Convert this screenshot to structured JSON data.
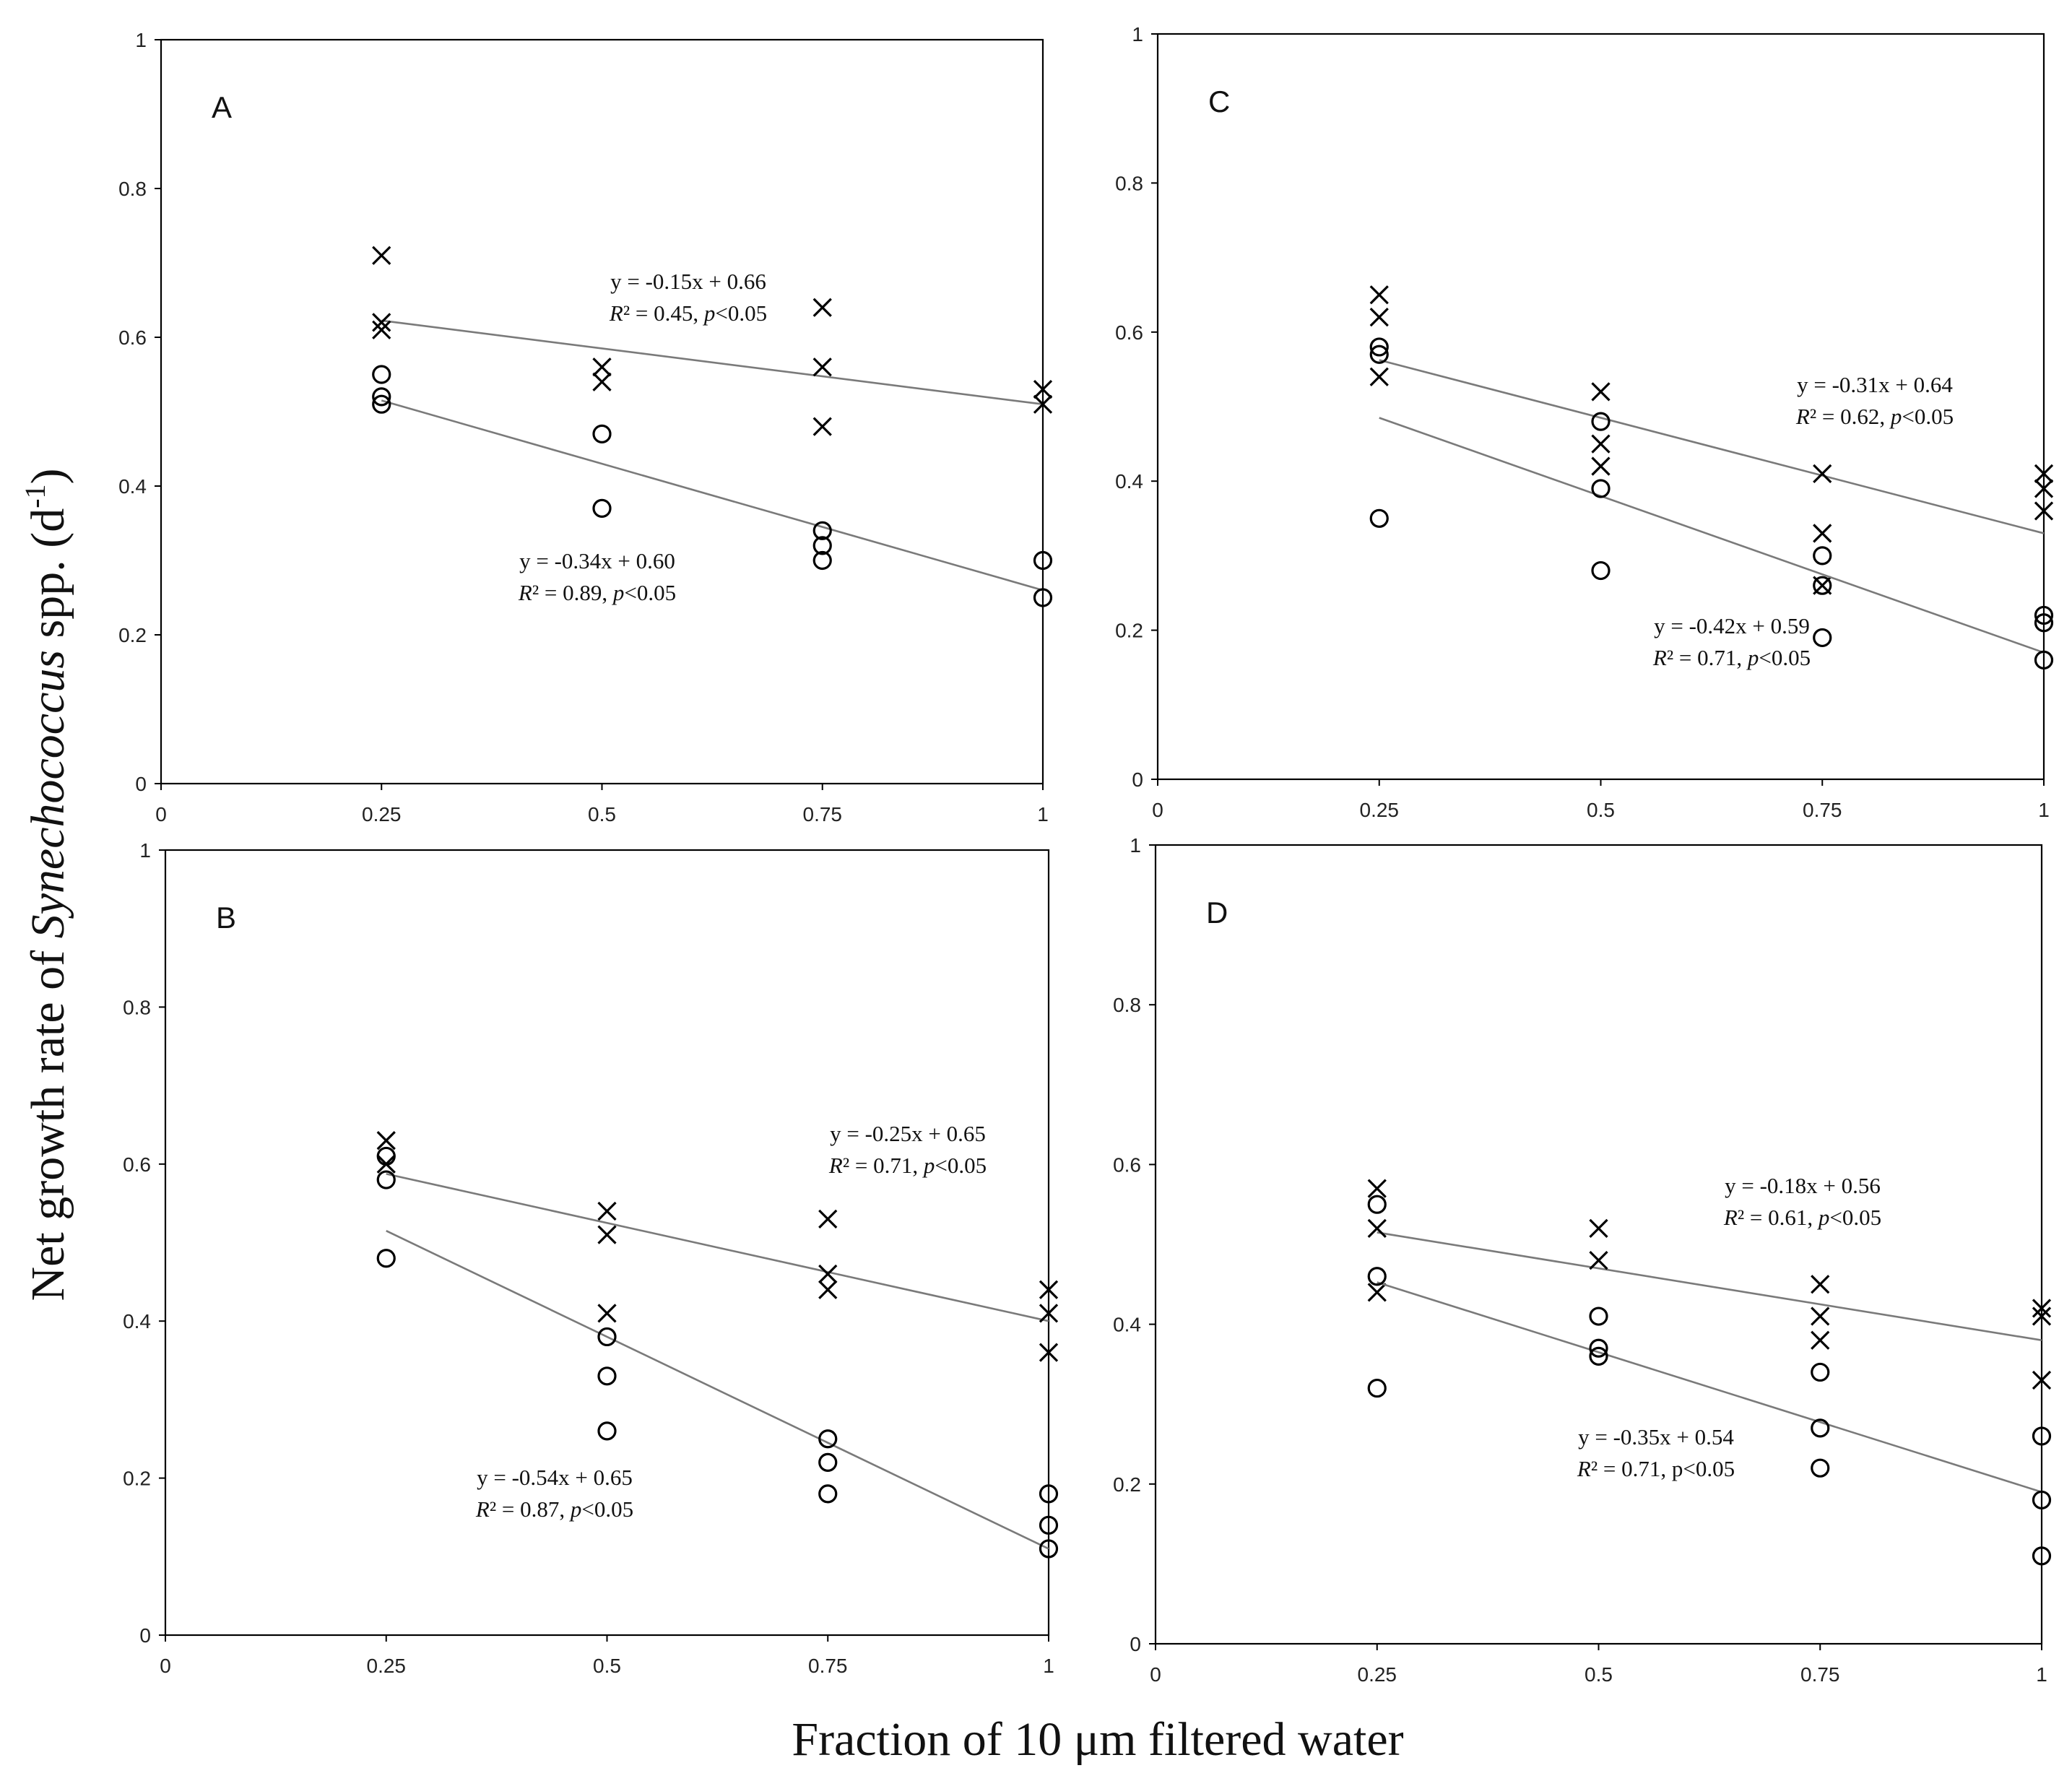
{
  "chart_data": {
    "type": "scatter",
    "ylabel_parts": {
      "prefix": "Net growth rate of ",
      "italic": "Synechococcus",
      "suffix": " spp. (d",
      "sup": "-1",
      "close": ")"
    },
    "xlabel": "Fraction of 10 μm filtered water",
    "shared_axes": {
      "xlim": [
        0,
        1
      ],
      "ylim": [
        0,
        1
      ],
      "x_ticks": [
        0,
        0.25,
        0.5,
        0.75,
        1
      ],
      "x_tick_labels": [
        "0",
        "0.25",
        "0.5",
        "0.75",
        "1"
      ],
      "y_ticks": [
        0,
        0.2,
        0.4,
        0.6,
        0.8,
        1
      ],
      "y_tick_labels": [
        "0",
        "0.2",
        "0.4",
        "0.6",
        "0.8",
        "1"
      ]
    },
    "panels": [
      {
        "id": "A",
        "label": "A",
        "series": [
          {
            "name": "cross",
            "marker": "x",
            "points": [
              [
                0.25,
                0.71
              ],
              [
                0.25,
                0.62
              ],
              [
                0.25,
                0.61
              ],
              [
                0.5,
                0.56
              ],
              [
                0.5,
                0.54
              ],
              [
                0.75,
                0.64
              ],
              [
                0.75,
                0.56
              ],
              [
                0.75,
                0.48
              ],
              [
                1,
                0.53
              ],
              [
                1,
                0.51
              ]
            ],
            "fit": {
              "slope": -0.15,
              "intercept": 0.66,
              "x_range": [
                0.25,
                1
              ]
            },
            "equation": {
              "line1": "y = -0.15x + 0.66",
              "r2": "R² = 0.45,",
              "p_italic": "p",
              "p_rest": "<0.05"
            }
          },
          {
            "name": "circle",
            "marker": "o",
            "points": [
              [
                0.25,
                0.55
              ],
              [
                0.25,
                0.52
              ],
              [
                0.25,
                0.51
              ],
              [
                0.5,
                0.47
              ],
              [
                0.5,
                0.37
              ],
              [
                0.75,
                0.34
              ],
              [
                0.75,
                0.32
              ],
              [
                0.75,
                0.3
              ],
              [
                1,
                0.3
              ],
              [
                1,
                0.25
              ]
            ],
            "fit": {
              "slope": -0.34,
              "intercept": 0.6,
              "x_range": [
                0.25,
                1
              ]
            },
            "equation": {
              "line1": "y = -0.34x + 0.60",
              "r2": "R² = 0.89,",
              "p_italic": "p",
              "p_rest": "<0.05"
            }
          }
        ]
      },
      {
        "id": "C",
        "label": "C",
        "series": [
          {
            "name": "cross",
            "marker": "x",
            "points": [
              [
                0.25,
                0.65
              ],
              [
                0.25,
                0.62
              ],
              [
                0.25,
                0.54
              ],
              [
                0.5,
                0.52
              ],
              [
                0.5,
                0.45
              ],
              [
                0.5,
                0.42
              ],
              [
                0.75,
                0.41
              ],
              [
                0.75,
                0.33
              ],
              [
                0.75,
                0.26
              ],
              [
                1,
                0.41
              ],
              [
                1,
                0.39
              ],
              [
                1,
                0.36
              ]
            ],
            "fit": {
              "slope": -0.31,
              "intercept": 0.64,
              "x_range": [
                0.25,
                1
              ]
            },
            "equation": {
              "line1": "y = -0.31x + 0.64",
              "r2": "R² = 0.62,",
              "p_italic": "p",
              "p_rest": "<0.05"
            }
          },
          {
            "name": "circle",
            "marker": "o",
            "points": [
              [
                0.25,
                0.58
              ],
              [
                0.25,
                0.57
              ],
              [
                0.25,
                0.35
              ],
              [
                0.5,
                0.48
              ],
              [
                0.5,
                0.39
              ],
              [
                0.5,
                0.28
              ],
              [
                0.75,
                0.3
              ],
              [
                0.75,
                0.26
              ],
              [
                0.75,
                0.19
              ],
              [
                1,
                0.22
              ],
              [
                1,
                0.21
              ],
              [
                1,
                0.16
              ]
            ],
            "fit": {
              "slope": -0.42,
              "intercept": 0.59,
              "x_range": [
                0.25,
                1
              ]
            },
            "equation": {
              "line1": "y = -0.42x + 0.59",
              "r2": "R² = 0.71,",
              "p_italic": "p",
              "p_rest": "<0.05"
            }
          }
        ]
      },
      {
        "id": "B",
        "label": "B",
        "series": [
          {
            "name": "cross",
            "marker": "x",
            "points": [
              [
                0.25,
                0.63
              ],
              [
                0.25,
                0.6
              ],
              [
                0.5,
                0.54
              ],
              [
                0.5,
                0.51
              ],
              [
                0.5,
                0.41
              ],
              [
                0.75,
                0.53
              ],
              [
                0.75,
                0.46
              ],
              [
                0.75,
                0.44
              ],
              [
                1,
                0.44
              ],
              [
                1,
                0.41
              ],
              [
                1,
                0.36
              ]
            ],
            "fit": {
              "slope": -0.25,
              "intercept": 0.65,
              "x_range": [
                0.25,
                1
              ]
            },
            "equation": {
              "line1": "y = -0.25x + 0.65",
              "r2": "R² = 0.71,",
              "p_italic": "p",
              "p_rest": "<0.05"
            }
          },
          {
            "name": "circle",
            "marker": "o",
            "points": [
              [
                0.25,
                0.61
              ],
              [
                0.25,
                0.58
              ],
              [
                0.25,
                0.48
              ],
              [
                0.5,
                0.38
              ],
              [
                0.5,
                0.33
              ],
              [
                0.5,
                0.26
              ],
              [
                0.75,
                0.25
              ],
              [
                0.75,
                0.22
              ],
              [
                0.75,
                0.18
              ],
              [
                1,
                0.18
              ],
              [
                1,
                0.14
              ],
              [
                1,
                0.11
              ]
            ],
            "fit": {
              "slope": -0.54,
              "intercept": 0.65,
              "x_range": [
                0.25,
                1
              ]
            },
            "equation": {
              "line1": "y = -0.54x + 0.65",
              "r2": "R² = 0.87,",
              "p_italic": "p",
              "p_rest": "<0.05"
            }
          }
        ]
      },
      {
        "id": "D",
        "label": "D",
        "series": [
          {
            "name": "cross",
            "marker": "x",
            "points": [
              [
                0.25,
                0.57
              ],
              [
                0.25,
                0.52
              ],
              [
                0.25,
                0.44
              ],
              [
                0.5,
                0.52
              ],
              [
                0.5,
                0.48
              ],
              [
                0.75,
                0.45
              ],
              [
                0.75,
                0.41
              ],
              [
                0.75,
                0.38
              ],
              [
                1,
                0.42
              ],
              [
                1,
                0.41
              ],
              [
                1,
                0.33
              ]
            ],
            "fit": {
              "slope": -0.18,
              "intercept": 0.56,
              "x_range": [
                0.25,
                1
              ]
            },
            "equation": {
              "line1": "y = -0.18x + 0.56",
              "r2": "R² = 0.61,",
              "p_italic": "p",
              "p_rest": "<0.05"
            }
          },
          {
            "name": "circle",
            "marker": "o",
            "points": [
              [
                0.25,
                0.55
              ],
              [
                0.25,
                0.46
              ],
              [
                0.25,
                0.32
              ],
              [
                0.5,
                0.41
              ],
              [
                0.5,
                0.37
              ],
              [
                0.5,
                0.36
              ],
              [
                0.75,
                0.34
              ],
              [
                0.75,
                0.27
              ],
              [
                0.75,
                0.22
              ],
              [
                1,
                0.26
              ],
              [
                1,
                0.18
              ],
              [
                1,
                0.11
              ]
            ],
            "fit": {
              "slope": -0.35,
              "intercept": 0.54,
              "x_range": [
                0.25,
                1
              ]
            },
            "equation": {
              "line1": "y = -0.35x + 0.54",
              "r2": "R² = 0.71, p<0.05"
            }
          }
        ]
      }
    ]
  }
}
